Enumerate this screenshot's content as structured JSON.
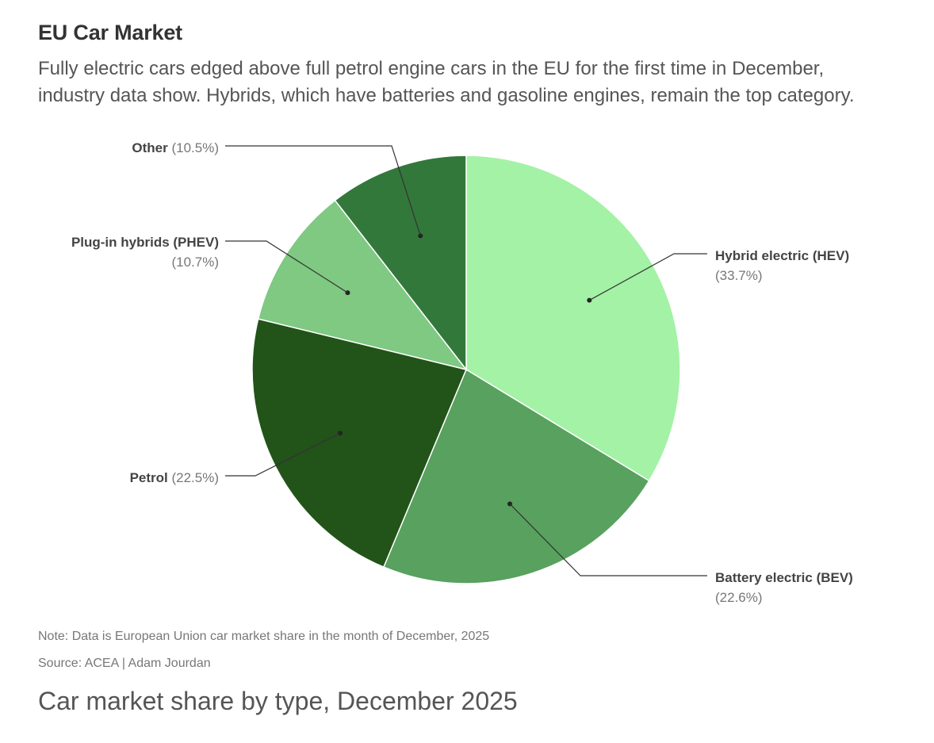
{
  "header": {
    "title": "EU Car Market",
    "subtitle_lines": [
      "Fully electric cars edged above full petrol engine cars in the EU for the first time in December,",
      "industry data show. Hybrids, which have batteries and gasoline engines, remain the top category."
    ]
  },
  "chart_data": {
    "type": "pie",
    "unit": "%",
    "slices": [
      {
        "name": "Hybrid electric (HEV)",
        "value": 33.7,
        "label": "(33.7%)",
        "color": "#a3f2a6"
      },
      {
        "name": "Battery electric (BEV)",
        "value": 22.6,
        "label": "(22.6%)",
        "color": "#58a15e"
      },
      {
        "name": "Petrol",
        "value": 22.5,
        "label": "(22.5%)",
        "color": "#225419"
      },
      {
        "name": "Plug-in hybrids (PHEV)",
        "value": 10.7,
        "label": "(10.7%)",
        "color": "#7fc982"
      },
      {
        "name": "Other",
        "value": 10.5,
        "label": "(10.5%)",
        "color": "#33783b"
      }
    ]
  },
  "footer": {
    "note": "Note: Data is European Union car market share in the month of December, 2025",
    "source": "Source: ACEA | Adam Jourdan",
    "caption": "Car market share by type, December 2025"
  }
}
